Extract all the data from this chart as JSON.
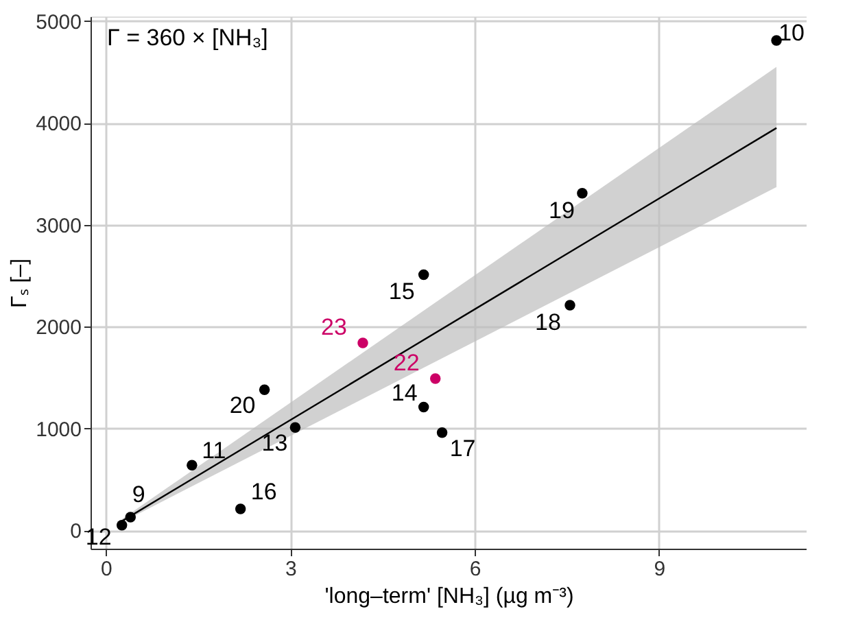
{
  "chart_data": {
    "type": "scatter",
    "xlabel": "'long–term' [NH₃] (µg m⁻³)",
    "ylabel": "Γₛ [–]",
    "xlim": [
      -0.25,
      11.4
    ],
    "ylim": [
      -180,
      5045
    ],
    "xticks": [
      0,
      3,
      6,
      9
    ],
    "yticks": [
      0,
      1000,
      2000,
      3000,
      4000,
      5000
    ],
    "grid": true,
    "series": [
      {
        "marker": "circle",
        "x": [
          0.26,
          0.4,
          1.4,
          2.19,
          2.58,
          3.08,
          4.18,
          5.17,
          5.36,
          5.17,
          5.47,
          7.55,
          7.75,
          10.91
        ],
        "values": [
          50,
          130,
          640,
          210,
          1380,
          1010,
          1840,
          2510,
          1490,
          1210,
          960,
          2210,
          3310,
          4810
        ],
        "colors": [
          "#000000",
          "#000000",
          "#000000",
          "#000000",
          "#000000",
          "#000000",
          "#cc0066",
          "#000000",
          "#cc0066",
          "#000000",
          "#000000",
          "#000000",
          "#000000",
          "#000000"
        ]
      },
      {
        "type": "line",
        "marker": "none",
        "color": "#000000",
        "x": [
          0.26,
          10.91
        ],
        "values": [
          90,
          3950
        ],
        "lower": [
          80,
          3370
        ],
        "upper": [
          110,
          4550
        ]
      }
    ],
    "annotations": [
      "Γ = 360 × [NH₃]",
      {
        "text": "12",
        "x": 0.26,
        "y": 50
      },
      {
        "text": "9",
        "x": 0.4,
        "y": 130
      },
      {
        "text": "11",
        "x": 1.4,
        "y": 640
      },
      {
        "text": "16",
        "x": 2.19,
        "y": 210
      },
      {
        "text": "20",
        "x": 2.58,
        "y": 1380
      },
      {
        "text": "13",
        "x": 3.08,
        "y": 1010
      },
      {
        "text": "23",
        "x": 4.18,
        "y": 1840
      },
      {
        "text": "15",
        "x": 5.17,
        "y": 2510
      },
      {
        "text": "22",
        "x": 5.36,
        "y": 1490
      },
      {
        "text": "14",
        "x": 5.17,
        "y": 1210
      },
      {
        "text": "17",
        "x": 5.47,
        "y": 960
      },
      {
        "text": "18",
        "x": 7.55,
        "y": 2210
      },
      {
        "text": "19",
        "x": 7.75,
        "y": 3310
      },
      {
        "text": "10",
        "x": 10.91,
        "y": 4810
      }
    ]
  }
}
